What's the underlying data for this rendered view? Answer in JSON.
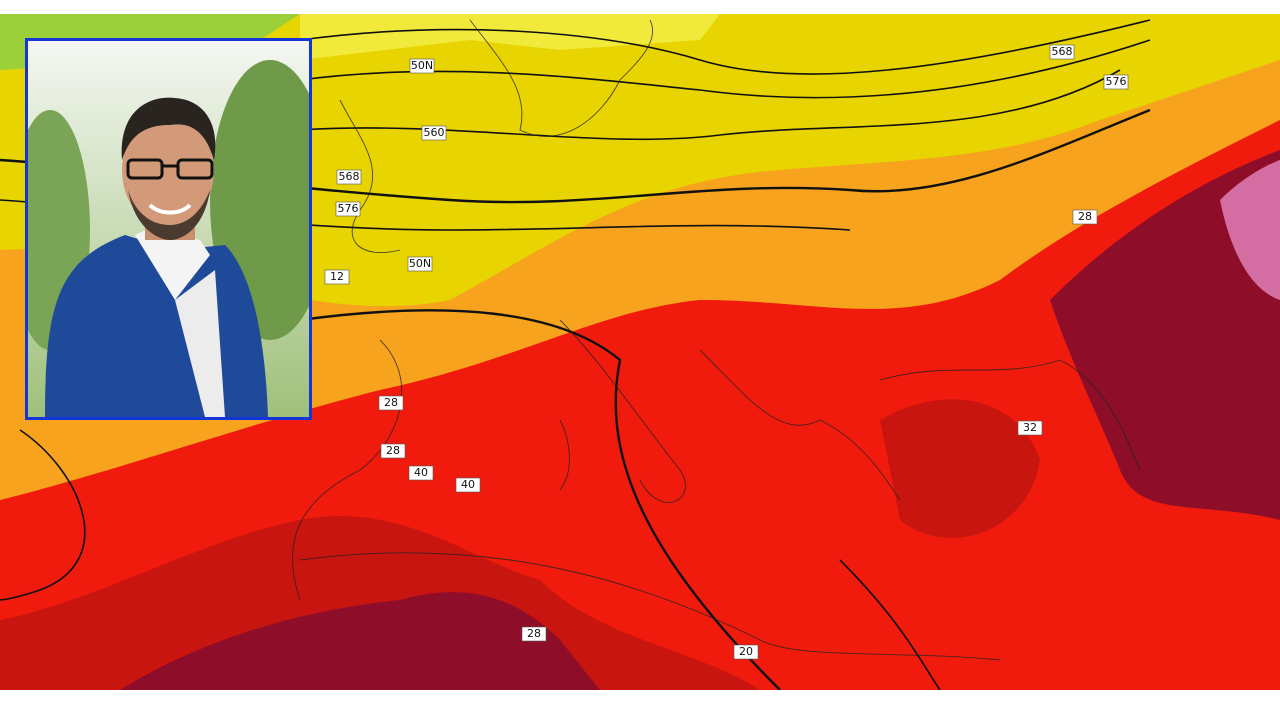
{
  "map": {
    "contour_labels": [
      "568",
      "576",
      "560",
      "568",
      "576",
      "50N",
      "50N",
      "12",
      "28",
      "28",
      "40",
      "40",
      "32",
      "28",
      "20",
      "28"
    ]
  }
}
